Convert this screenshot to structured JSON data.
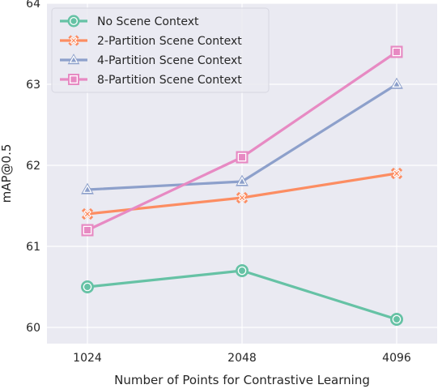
{
  "chart_data": {
    "type": "line",
    "title": "",
    "xlabel": "Number of Points for Contrastive Learning",
    "ylabel": "mAP@0.5",
    "categories": [
      "1024",
      "2048",
      "4096"
    ],
    "ylim": [
      59.8,
      64
    ],
    "yticks": [
      60,
      61,
      62,
      63,
      64
    ],
    "grid": true,
    "legend_position": "top-left",
    "series": [
      {
        "name": "No Scene Context",
        "values": [
          60.5,
          60.7,
          60.1
        ],
        "color": "#66c2a5",
        "marker": "circle"
      },
      {
        "name": "2-Partition Scene Context",
        "values": [
          61.4,
          61.6,
          61.9
        ],
        "color": "#fc8d62",
        "marker": "x-filled"
      },
      {
        "name": "4-Partition Scene Context",
        "values": [
          61.7,
          61.8,
          63.0
        ],
        "color": "#8da0cb",
        "marker": "triangle"
      },
      {
        "name": "8-Partition Scene Context",
        "values": [
          61.2,
          62.1,
          63.4
        ],
        "color": "#e78ac3",
        "marker": "square"
      }
    ]
  }
}
